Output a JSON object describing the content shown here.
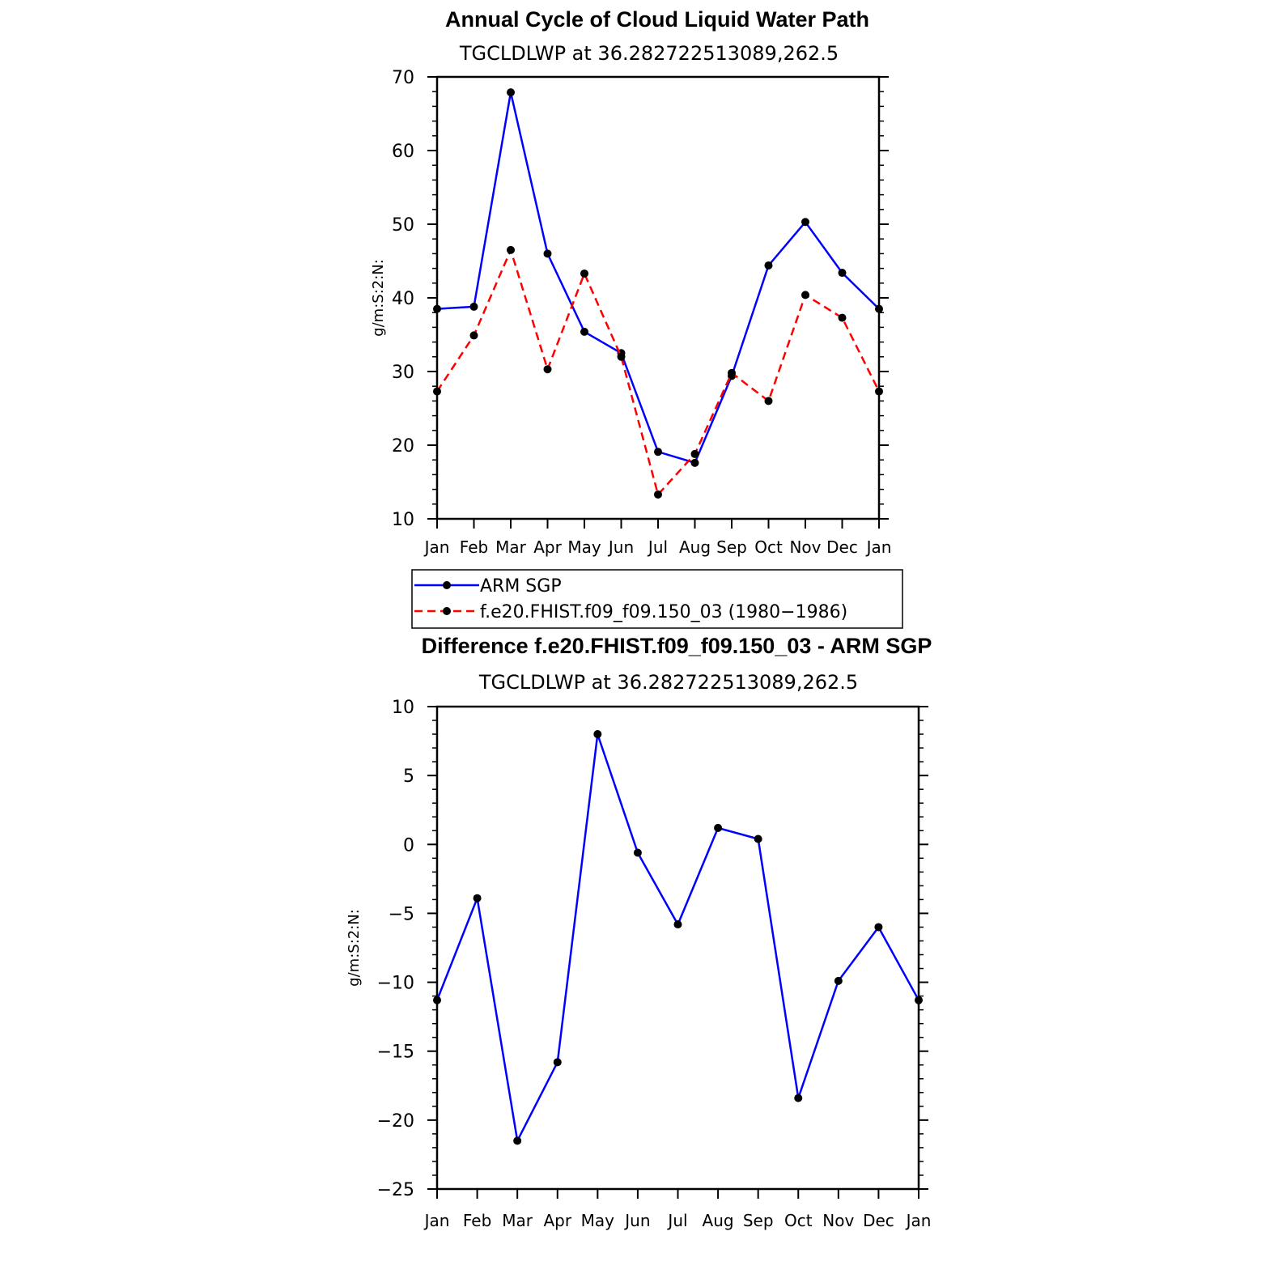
{
  "chart_data": [
    {
      "type": "line",
      "title": "Annual Cycle of Cloud Liquid Water Path",
      "subtitle": "TGCLDLWP  at  36.282722513089,262.5",
      "ylabel": "g/m:S:2:N:",
      "xlabel": "",
      "ylim": [
        10,
        70
      ],
      "yticks": [
        10,
        20,
        30,
        40,
        50,
        60,
        70
      ],
      "yticks_text": [
        "10",
        "20",
        "30",
        "40",
        "50",
        "60",
        "70"
      ],
      "categories": [
        "Jan",
        "Feb",
        "Mar",
        "Apr",
        "May",
        "Jun",
        "Jul",
        "Aug",
        "Sep",
        "Oct",
        "Nov",
        "Dec",
        "Jan"
      ],
      "series": [
        {
          "name": "ARM  SGP",
          "color": "#0000ff",
          "dash": "solid",
          "values": [
            38.5,
            38.8,
            67.9,
            46.0,
            35.4,
            32.5,
            19.1,
            17.6,
            29.4,
            44.4,
            50.3,
            43.4,
            38.5
          ]
        },
        {
          "name": "f.e20.FHIST.f09_f09.150_03  (1980−1986)",
          "color": "#ff0000",
          "dash": "dashed",
          "values": [
            27.3,
            34.9,
            46.5,
            30.3,
            43.3,
            32.0,
            13.3,
            18.8,
            29.8,
            26.0,
            40.4,
            37.3,
            27.3
          ]
        }
      ],
      "legend": "below"
    },
    {
      "type": "line",
      "title": "Difference f.e20.FHIST.f09_f09.150_03 - ARM SGP",
      "subtitle": "TGCLDLWP  at  36.282722513089,262.5",
      "ylabel": "g/m:S:2:N:",
      "xlabel": "",
      "ylim": [
        -25,
        10
      ],
      "yticks": [
        -25,
        -20,
        -15,
        -10,
        -5,
        0,
        5,
        10
      ],
      "yticks_text": [
        "−25",
        "−20",
        "−15",
        "−10",
        "−5",
        "0",
        "5",
        "10"
      ],
      "categories": [
        "Jan",
        "Feb",
        "Mar",
        "Apr",
        "May",
        "Jun",
        "Jul",
        "Aug",
        "Sep",
        "Oct",
        "Nov",
        "Dec",
        "Jan"
      ],
      "series": [
        {
          "name": "Difference",
          "color": "#0000ff",
          "dash": "solid",
          "values": [
            -11.3,
            -3.9,
            -21.5,
            -15.8,
            8.0,
            -0.6,
            -5.8,
            1.2,
            0.4,
            -18.4,
            -9.9,
            -6.0,
            -11.3
          ]
        }
      ]
    }
  ]
}
